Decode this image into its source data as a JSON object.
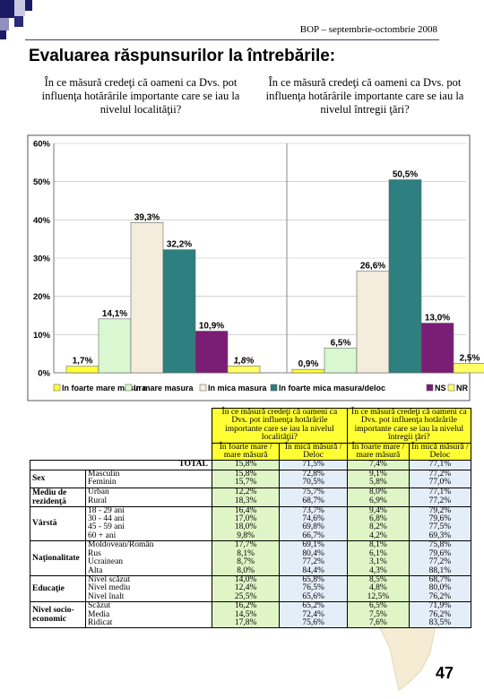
{
  "header": {
    "text": "BOP – septembrie-octombrie 2008"
  },
  "title": "Evaluarea răspunsurilor la întrebările:",
  "questions": {
    "q1": "În ce măsură credeţi că oameni ca Dvs. pot influenţa hotărârile importante care se iau la nivelul localităţii?",
    "q2": "În ce măsură credeţi că oameni ca Dvs. pot influenţa hotărârile importante care se iau la nivelul întregii ţări?"
  },
  "chart_data": {
    "type": "bar",
    "groups": [
      "localitate",
      "tara"
    ],
    "series": [
      {
        "name": "In foarte mare masura",
        "color": "#ffff33",
        "values": [
          1.7,
          0.9
        ]
      },
      {
        "name": "In mare masura",
        "color": "#d9f7d0",
        "values": [
          14.1,
          6.5
        ]
      },
      {
        "name": "In mica masura",
        "color": "#f4ecdc",
        "values": [
          39.3,
          26.6
        ]
      },
      {
        "name": "In foarte mica masura/deloc",
        "color": "#2e7f7f",
        "values": [
          32.2,
          50.5
        ]
      },
      {
        "name": "NS",
        "color": "#7a1d74",
        "values": [
          10.9,
          13.0
        ]
      },
      {
        "name": "NR",
        "color": "#ffff66",
        "values": [
          1.8,
          2.5
        ]
      }
    ],
    "data_labels": [
      [
        "1,7%",
        "14,1%",
        "39,3%",
        "32,2%",
        "10,9%",
        "1,8%"
      ],
      [
        "0,9%",
        "6,5%",
        "26,6%",
        "50,5%",
        "13,0%",
        "2,5%"
      ]
    ],
    "yticks": [
      "0%",
      "10%",
      "20%",
      "30%",
      "40%",
      "50%",
      "60%"
    ],
    "ylim": [
      0,
      60
    ],
    "legend_position": "bottom"
  },
  "table": {
    "header1": [
      "În ce măsură credeţi că oameni ca Dvs. pot influenţa hotărârile importante care se iau la nivelul localităţii?",
      "În ce măsură credeţi că oameni ca Dvs. pot influenţa hotărârile importante care se iau la nivelul întregii ţări?"
    ],
    "header2": [
      "În foarte mare / mare măsură",
      "În mică măsură / Deloc",
      "În foarte mare / mare măsură",
      "În mică măsură / Deloc"
    ],
    "total": {
      "label": "TOTAL",
      "values": [
        "15,8%",
        "71,5%",
        "7,4%",
        "77,1%"
      ]
    },
    "groups": [
      {
        "name": "Sex",
        "rows": [
          {
            "label": "Masculin",
            "values": [
              "15,8%",
              "72,8%",
              "9,1%",
              "77,2%"
            ]
          },
          {
            "label": "Feminin",
            "values": [
              "15,7%",
              "70,5%",
              "5,8%",
              "77,0%"
            ]
          }
        ]
      },
      {
        "name": "Mediu de rezidenţă",
        "rows": [
          {
            "label": "Urban",
            "values": [
              "12,2%",
              "75,7%",
              "8,0%",
              "77,1%"
            ]
          },
          {
            "label": "Rural",
            "values": [
              "18,3%",
              "68,7%",
              "6,9%",
              "77,2%"
            ]
          }
        ]
      },
      {
        "name": "Vârstă",
        "rows": [
          {
            "label": "18 - 29 ani",
            "values": [
              "16,4%",
              "73,7%",
              "9,4%",
              "79,2%"
            ]
          },
          {
            "label": "30 - 44 ani",
            "values": [
              "17,0%",
              "74,6%",
              "6,8%",
              "79,6%"
            ]
          },
          {
            "label": "45 - 59 ani",
            "values": [
              "18,0%",
              "69,8%",
              "8,2%",
              "77,5%"
            ]
          },
          {
            "label": "60 + ani",
            "values": [
              "9,8%",
              "66,7%",
              "4,2%",
              "69,3%"
            ]
          }
        ]
      },
      {
        "name": "Naţionalitate",
        "rows": [
          {
            "label": "Moldovean/Român",
            "values": [
              "17,7%",
              "69,1%",
              "8,1%",
              "75,8%"
            ]
          },
          {
            "label": "Rus",
            "values": [
              "8,1%",
              "80,4%",
              "6,1%",
              "79,6%"
            ]
          },
          {
            "label": "Ucrainean",
            "values": [
              "8,7%",
              "77,2%",
              "3,1%",
              "77,2%"
            ]
          },
          {
            "label": "Alta",
            "values": [
              "8,0%",
              "84,4%",
              "4,3%",
              "88,1%"
            ]
          }
        ]
      },
      {
        "name": "Educaţie",
        "rows": [
          {
            "label": "Nivel scăzut",
            "values": [
              "14,0%",
              "65,8%",
              "8,5%",
              "68,7%"
            ]
          },
          {
            "label": "Nivel mediu",
            "values": [
              "12,4%",
              "76,5%",
              "4,8%",
              "80,0%"
            ]
          },
          {
            "label": "Nivel înalt",
            "values": [
              "25,5%",
              "65,6%",
              "12,5%",
              "76,2%"
            ]
          }
        ]
      },
      {
        "name": "Nivel socio-economic",
        "rows": [
          {
            "label": "Scăzut",
            "values": [
              "16,2%",
              "65,2%",
              "6,5%",
              "71,9%"
            ]
          },
          {
            "label": "Media",
            "values": [
              "14,5%",
              "72,4%",
              "7,5%",
              "76,2%"
            ]
          },
          {
            "label": "Ridicat",
            "values": [
              "17,8%",
              "75,6%",
              "7,6%",
              "83,5%"
            ]
          }
        ]
      }
    ]
  },
  "page_number": "47"
}
